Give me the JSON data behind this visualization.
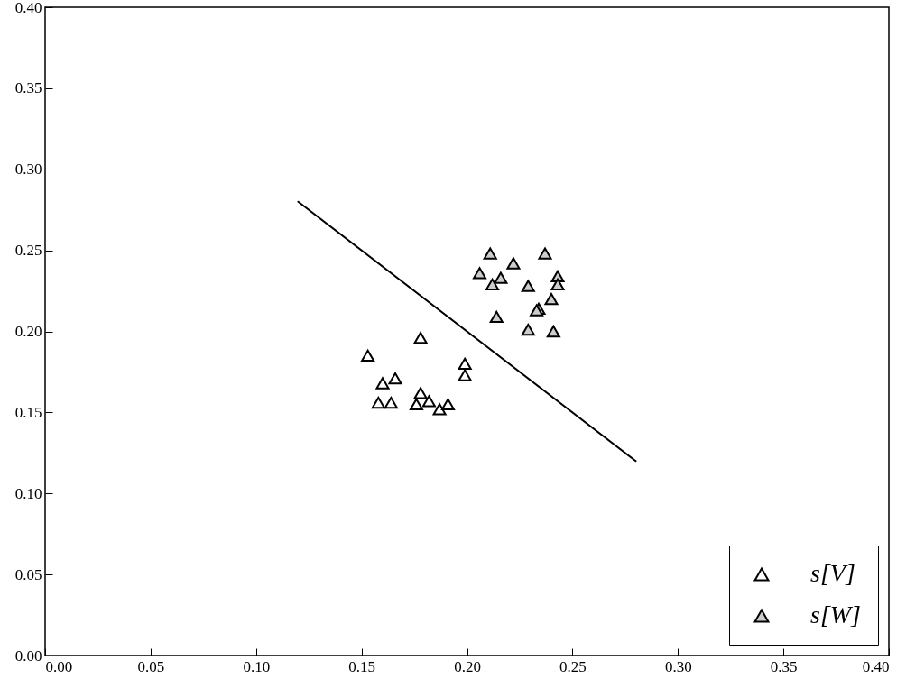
{
  "chart_data": {
    "type": "scatter",
    "legend": "bottom right",
    "grid": false,
    "xlim": [
      0,
      0.4
    ],
    "ylim": [
      0,
      0.4
    ],
    "xticks": [
      {
        "value": 0,
        "label": "0.00"
      },
      {
        "value": 0.05,
        "label": "0.05"
      },
      {
        "value": 0.1,
        "label": "0.10"
      },
      {
        "value": 0.15,
        "label": "0.15"
      },
      {
        "value": 0.2,
        "label": "0.20"
      },
      {
        "value": 0.25,
        "label": "0.25"
      },
      {
        "value": 0.3,
        "label": "0.30"
      },
      {
        "value": 0.35,
        "label": "0.35"
      },
      {
        "value": 0.4,
        "label": "0.40"
      }
    ],
    "yticks": [
      {
        "value": 0,
        "label": "0.00"
      },
      {
        "value": 0.05,
        "label": "0.05"
      },
      {
        "value": 0.1,
        "label": "0.10"
      },
      {
        "value": 0.15,
        "label": "0.15"
      },
      {
        "value": 0.2,
        "label": "0.20"
      },
      {
        "value": 0.25,
        "label": "0.25"
      },
      {
        "value": 0.3,
        "label": "0.30"
      },
      {
        "value": 0.35,
        "label": "0.35"
      },
      {
        "value": 0.4,
        "label": "0.40"
      }
    ],
    "series": [
      {
        "name": "s[V]",
        "marker": "triangle",
        "color": "#ffffff",
        "x": [
          0.153,
          0.16,
          0.166,
          0.158,
          0.164,
          0.178,
          0.178,
          0.176,
          0.182,
          0.187,
          0.191,
          0.199,
          0.199
        ],
        "values": [
          0.185,
          0.168,
          0.171,
          0.156,
          0.156,
          0.196,
          0.162,
          0.155,
          0.157,
          0.152,
          0.155,
          0.18,
          0.173
        ]
      },
      {
        "name": "s[W]",
        "marker": "triangle",
        "color": "#cccccc",
        "x": [
          0.211,
          0.237,
          0.222,
          0.206,
          0.216,
          0.212,
          0.229,
          0.243,
          0.243,
          0.24,
          0.234,
          0.233,
          0.214,
          0.229,
          0.241
        ],
        "values": [
          0.248,
          0.248,
          0.242,
          0.236,
          0.233,
          0.229,
          0.228,
          0.234,
          0.229,
          0.22,
          0.214,
          0.213,
          0.209,
          0.201,
          0.2
        ]
      },
      {
        "type": "line",
        "color": "#000000",
        "x": [
          0.12,
          0.28
        ],
        "values": [
          0.28,
          0.12
        ]
      }
    ]
  }
}
